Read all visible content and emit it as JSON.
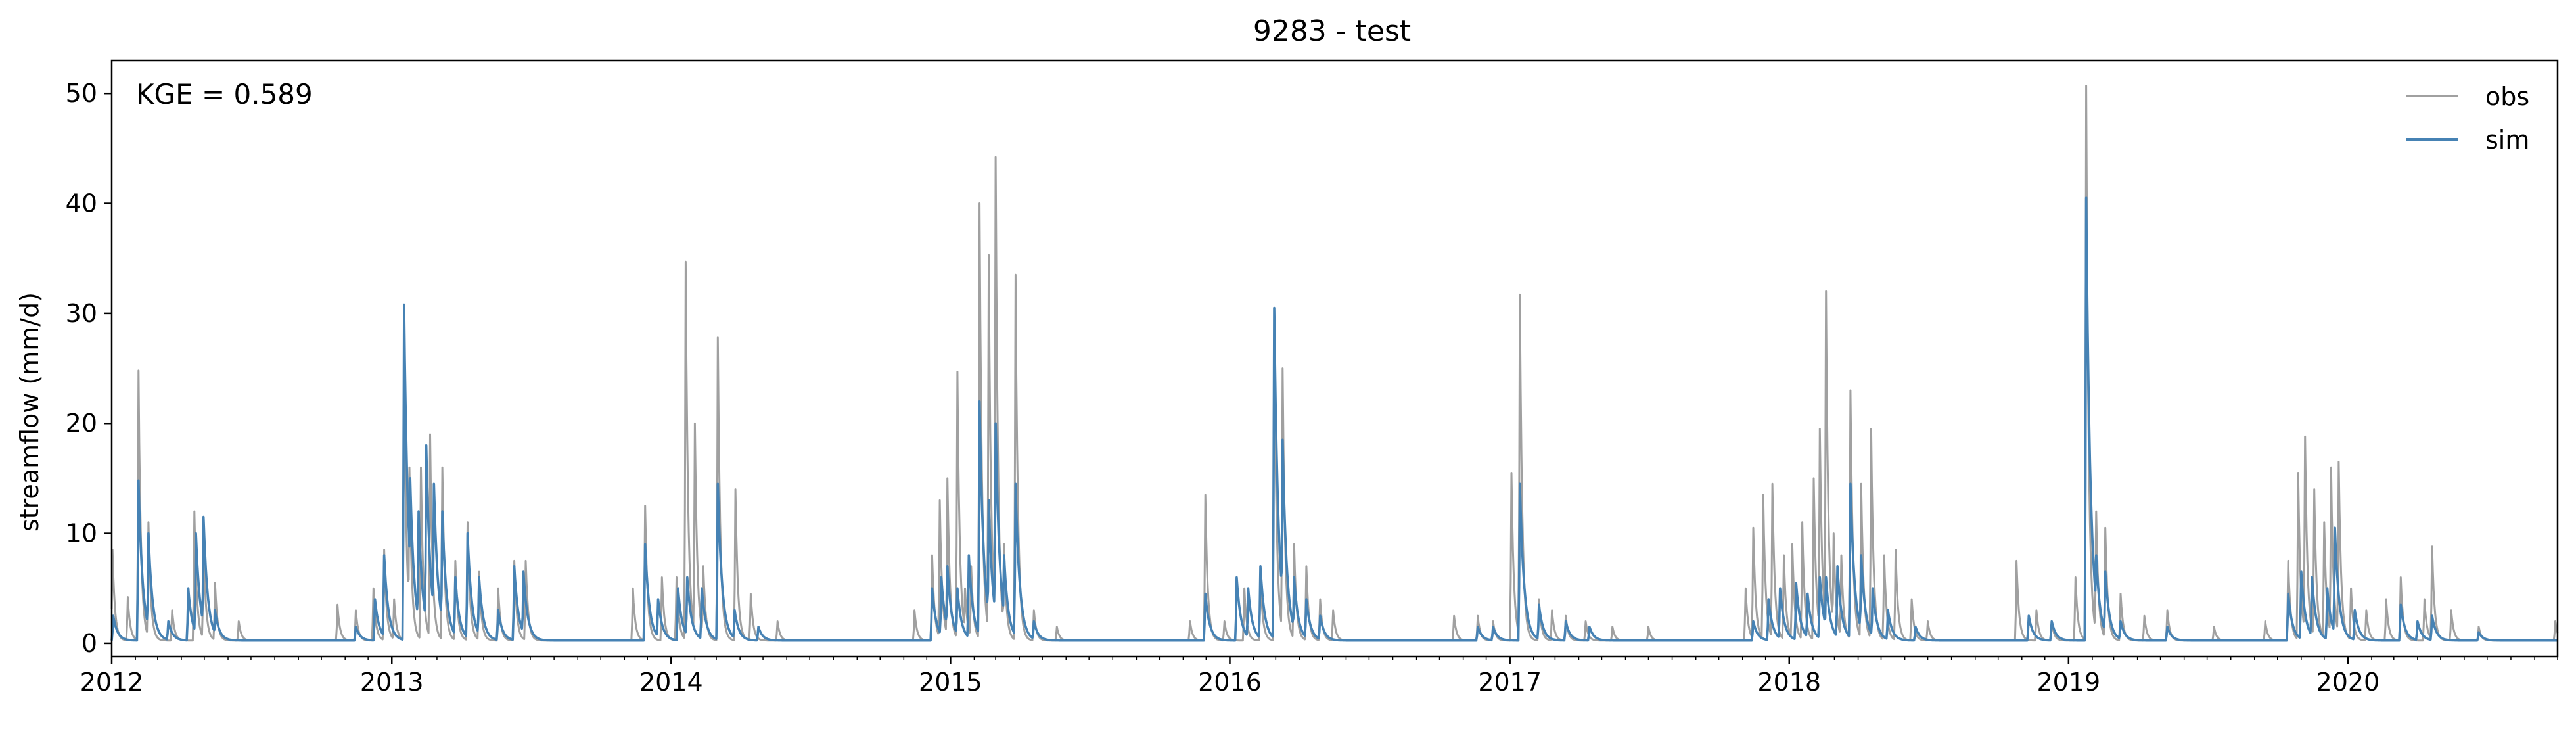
{
  "chart_data": {
    "type": "line",
    "title": "9283 - test",
    "xlabel": "",
    "ylabel": "streamflow (mm/d)",
    "annotation": "KGE = 0.589",
    "xlim": [
      "2012-01-01",
      "2020-10-01"
    ],
    "ylim": [
      -1.2,
      53
    ],
    "x_ticks": [
      "2012",
      "2013",
      "2014",
      "2015",
      "2016",
      "2017",
      "2018",
      "2019",
      "2020"
    ],
    "y_ticks": [
      "0",
      "10",
      "20",
      "30",
      "40",
      "50"
    ],
    "grid": false,
    "legend_position": "top-right",
    "baseline": 0.25,
    "series": [
      {
        "name": "obs",
        "color": "#a0a0a0",
        "events": [
          [
            "2012-01-02",
            8.5
          ],
          [
            "2012-01-22",
            4.2
          ],
          [
            "2012-02-05",
            24.8
          ],
          [
            "2012-02-18",
            11.0
          ],
          [
            "2012-03-20",
            3.0
          ],
          [
            "2012-04-18",
            12.0
          ],
          [
            "2012-04-30",
            9.0
          ],
          [
            "2012-05-15",
            5.5
          ],
          [
            "2012-06-15",
            2.0
          ],
          [
            "2012-10-22",
            3.5
          ],
          [
            "2012-11-15",
            3.0
          ],
          [
            "2012-12-08",
            5.0
          ],
          [
            "2012-12-22",
            8.5
          ],
          [
            "2013-01-04",
            4.0
          ],
          [
            "2013-01-17",
            26.0
          ],
          [
            "2013-01-24",
            16.0
          ],
          [
            "2013-02-08",
            16.0
          ],
          [
            "2013-02-20",
            19.0
          ],
          [
            "2013-03-08",
            16.0
          ],
          [
            "2013-03-25",
            7.5
          ],
          [
            "2013-04-10",
            11.0
          ],
          [
            "2013-04-25",
            6.5
          ],
          [
            "2013-05-20",
            5.0
          ],
          [
            "2013-06-10",
            7.5
          ],
          [
            "2013-06-25",
            7.5
          ],
          [
            "2013-11-12",
            5.0
          ],
          [
            "2013-11-28",
            12.5
          ],
          [
            "2013-12-20",
            6.0
          ],
          [
            "2014-01-08",
            6.0
          ],
          [
            "2014-01-20",
            34.7
          ],
          [
            "2014-02-01",
            20.0
          ],
          [
            "2014-02-12",
            7.0
          ],
          [
            "2014-03-03",
            27.8
          ],
          [
            "2014-03-26",
            14.0
          ],
          [
            "2014-04-15",
            4.5
          ],
          [
            "2014-05-20",
            2.0
          ],
          [
            "2014-11-15",
            3.0
          ],
          [
            "2014-12-08",
            8.0
          ],
          [
            "2014-12-18",
            13.0
          ],
          [
            "2014-12-28",
            15.0
          ],
          [
            "2015-01-10",
            24.7
          ],
          [
            "2015-01-20",
            5.0
          ],
          [
            "2015-01-28",
            7.0
          ],
          [
            "2015-02-08",
            40.0
          ],
          [
            "2015-02-20",
            35.3
          ],
          [
            "2015-03-01",
            44.2
          ],
          [
            "2015-03-12",
            9.0
          ],
          [
            "2015-03-27",
            33.5
          ],
          [
            "2015-04-20",
            3.0
          ],
          [
            "2015-05-20",
            1.5
          ],
          [
            "2015-11-10",
            2.0
          ],
          [
            "2015-11-30",
            13.5
          ],
          [
            "2015-12-25",
            2.0
          ],
          [
            "2016-01-20",
            5.0
          ],
          [
            "2016-02-10",
            6.0
          ],
          [
            "2016-02-28",
            30.0
          ],
          [
            "2016-03-10",
            25.0
          ],
          [
            "2016-03-25",
            9.0
          ],
          [
            "2016-04-10",
            7.0
          ],
          [
            "2016-04-28",
            4.0
          ],
          [
            "2016-05-15",
            3.0
          ],
          [
            "2016-10-20",
            2.5
          ],
          [
            "2016-11-20",
            2.5
          ],
          [
            "2016-12-10",
            2.0
          ],
          [
            "2017-01-03",
            15.5
          ],
          [
            "2017-01-14",
            31.7
          ],
          [
            "2017-02-08",
            4.0
          ],
          [
            "2017-02-25",
            3.0
          ],
          [
            "2017-03-15",
            2.5
          ],
          [
            "2017-04-10",
            2.0
          ],
          [
            "2017-05-15",
            1.5
          ],
          [
            "2017-07-01",
            1.5
          ],
          [
            "2017-11-05",
            5.0
          ],
          [
            "2017-11-15",
            10.5
          ],
          [
            "2017-11-28",
            13.5
          ],
          [
            "2017-12-10",
            14.5
          ],
          [
            "2017-12-25",
            8.0
          ],
          [
            "2018-01-05",
            9.0
          ],
          [
            "2018-01-18",
            11.0
          ],
          [
            "2018-02-02",
            15.0
          ],
          [
            "2018-02-10",
            19.5
          ],
          [
            "2018-02-18",
            32.0
          ],
          [
            "2018-02-28",
            10.0
          ],
          [
            "2018-03-10",
            8.0
          ],
          [
            "2018-03-22",
            23.0
          ],
          [
            "2018-04-05",
            14.5
          ],
          [
            "2018-04-18",
            19.5
          ],
          [
            "2018-05-05",
            8.0
          ],
          [
            "2018-05-20",
            8.5
          ],
          [
            "2018-06-10",
            4.0
          ],
          [
            "2018-07-01",
            2.0
          ],
          [
            "2018-10-25",
            7.5
          ],
          [
            "2018-11-20",
            3.0
          ],
          [
            "2018-12-10",
            2.0
          ],
          [
            "2019-01-10",
            6.0
          ],
          [
            "2019-01-24",
            50.7
          ],
          [
            "2019-02-06",
            12.0
          ],
          [
            "2019-02-18",
            10.5
          ],
          [
            "2019-03-10",
            4.5
          ],
          [
            "2019-04-10",
            2.5
          ],
          [
            "2019-05-10",
            3.0
          ],
          [
            "2019-07-10",
            1.5
          ],
          [
            "2019-09-15",
            2.0
          ],
          [
            "2019-10-15",
            7.5
          ],
          [
            "2019-10-28",
            15.5
          ],
          [
            "2019-11-06",
            18.8
          ],
          [
            "2019-11-18",
            14.0
          ],
          [
            "2019-12-01",
            11.0
          ],
          [
            "2019-12-10",
            16.0
          ],
          [
            "2019-12-20",
            16.5
          ],
          [
            "2020-01-05",
            5.0
          ],
          [
            "2020-01-25",
            3.0
          ],
          [
            "2020-02-20",
            4.0
          ],
          [
            "2020-03-10",
            6.0
          ],
          [
            "2020-04-10",
            4.0
          ],
          [
            "2020-04-20",
            8.8
          ],
          [
            "2020-05-15",
            3.0
          ],
          [
            "2020-06-20",
            1.5
          ],
          [
            "2020-09-28",
            2.0
          ]
        ]
      },
      {
        "name": "sim",
        "color": "#4682b4",
        "events": [
          [
            "2012-01-03",
            2.5
          ],
          [
            "2012-02-05",
            14.8
          ],
          [
            "2012-02-18",
            10.0
          ],
          [
            "2012-03-15",
            2.0
          ],
          [
            "2012-04-10",
            5.0
          ],
          [
            "2012-04-20",
            10.0
          ],
          [
            "2012-04-30",
            11.5
          ],
          [
            "2012-05-15",
            3.0
          ],
          [
            "2012-11-15",
            1.5
          ],
          [
            "2012-12-10",
            4.0
          ],
          [
            "2012-12-22",
            8.0
          ],
          [
            "2013-01-17",
            30.8
          ],
          [
            "2013-01-25",
            15.0
          ],
          [
            "2013-02-05",
            12.0
          ],
          [
            "2013-02-15",
            18.0
          ],
          [
            "2013-02-25",
            14.5
          ],
          [
            "2013-03-08",
            12.0
          ],
          [
            "2013-03-25",
            6.0
          ],
          [
            "2013-04-10",
            10.0
          ],
          [
            "2013-04-25",
            6.0
          ],
          [
            "2013-05-20",
            3.0
          ],
          [
            "2013-06-10",
            7.0
          ],
          [
            "2013-06-22",
            6.5
          ],
          [
            "2013-11-28",
            9.0
          ],
          [
            "2013-12-15",
            4.0
          ],
          [
            "2014-01-10",
            5.0
          ],
          [
            "2014-01-22",
            6.0
          ],
          [
            "2014-02-10",
            5.0
          ],
          [
            "2014-03-03",
            14.5
          ],
          [
            "2014-03-25",
            3.0
          ],
          [
            "2014-04-25",
            1.5
          ],
          [
            "2014-12-08",
            5.0
          ],
          [
            "2014-12-20",
            6.0
          ],
          [
            "2014-12-28",
            7.0
          ],
          [
            "2015-01-10",
            5.0
          ],
          [
            "2015-01-25",
            8.0
          ],
          [
            "2015-02-08",
            22.0
          ],
          [
            "2015-02-20",
            13.0
          ],
          [
            "2015-03-01",
            20.0
          ],
          [
            "2015-03-12",
            8.0
          ],
          [
            "2015-03-27",
            14.5
          ],
          [
            "2015-04-20",
            2.0
          ],
          [
            "2015-11-30",
            4.5
          ],
          [
            "2016-01-10",
            6.0
          ],
          [
            "2016-01-25",
            5.0
          ],
          [
            "2016-02-10",
            7.0
          ],
          [
            "2016-02-28",
            30.5
          ],
          [
            "2016-03-10",
            18.5
          ],
          [
            "2016-03-25",
            6.0
          ],
          [
            "2016-04-10",
            4.0
          ],
          [
            "2016-04-28",
            2.5
          ],
          [
            "2016-11-20",
            1.5
          ],
          [
            "2016-12-10",
            1.5
          ],
          [
            "2017-01-14",
            14.5
          ],
          [
            "2017-02-08",
            3.5
          ],
          [
            "2017-03-15",
            2.0
          ],
          [
            "2017-04-15",
            1.5
          ],
          [
            "2017-11-15",
            2.0
          ],
          [
            "2017-12-05",
            4.0
          ],
          [
            "2017-12-20",
            5.0
          ],
          [
            "2018-01-10",
            5.5
          ],
          [
            "2018-01-25",
            4.5
          ],
          [
            "2018-02-10",
            6.0
          ],
          [
            "2018-02-18",
            6.0
          ],
          [
            "2018-03-05",
            7.0
          ],
          [
            "2018-03-22",
            14.5
          ],
          [
            "2018-04-05",
            8.0
          ],
          [
            "2018-04-20",
            5.0
          ],
          [
            "2018-05-10",
            3.0
          ],
          [
            "2018-06-15",
            1.5
          ],
          [
            "2018-11-10",
            2.5
          ],
          [
            "2018-12-10",
            2.0
          ],
          [
            "2019-01-24",
            40.5
          ],
          [
            "2019-02-06",
            8.0
          ],
          [
            "2019-02-18",
            6.5
          ],
          [
            "2019-03-10",
            2.0
          ],
          [
            "2019-05-10",
            1.5
          ],
          [
            "2019-10-15",
            4.5
          ],
          [
            "2019-11-01",
            6.5
          ],
          [
            "2019-11-15",
            6.0
          ],
          [
            "2019-12-05",
            5.0
          ],
          [
            "2019-12-15",
            10.5
          ],
          [
            "2020-01-10",
            3.0
          ],
          [
            "2020-03-10",
            3.5
          ],
          [
            "2020-04-01",
            2.0
          ],
          [
            "2020-04-20",
            2.5
          ],
          [
            "2020-06-20",
            1.0
          ]
        ]
      }
    ]
  }
}
